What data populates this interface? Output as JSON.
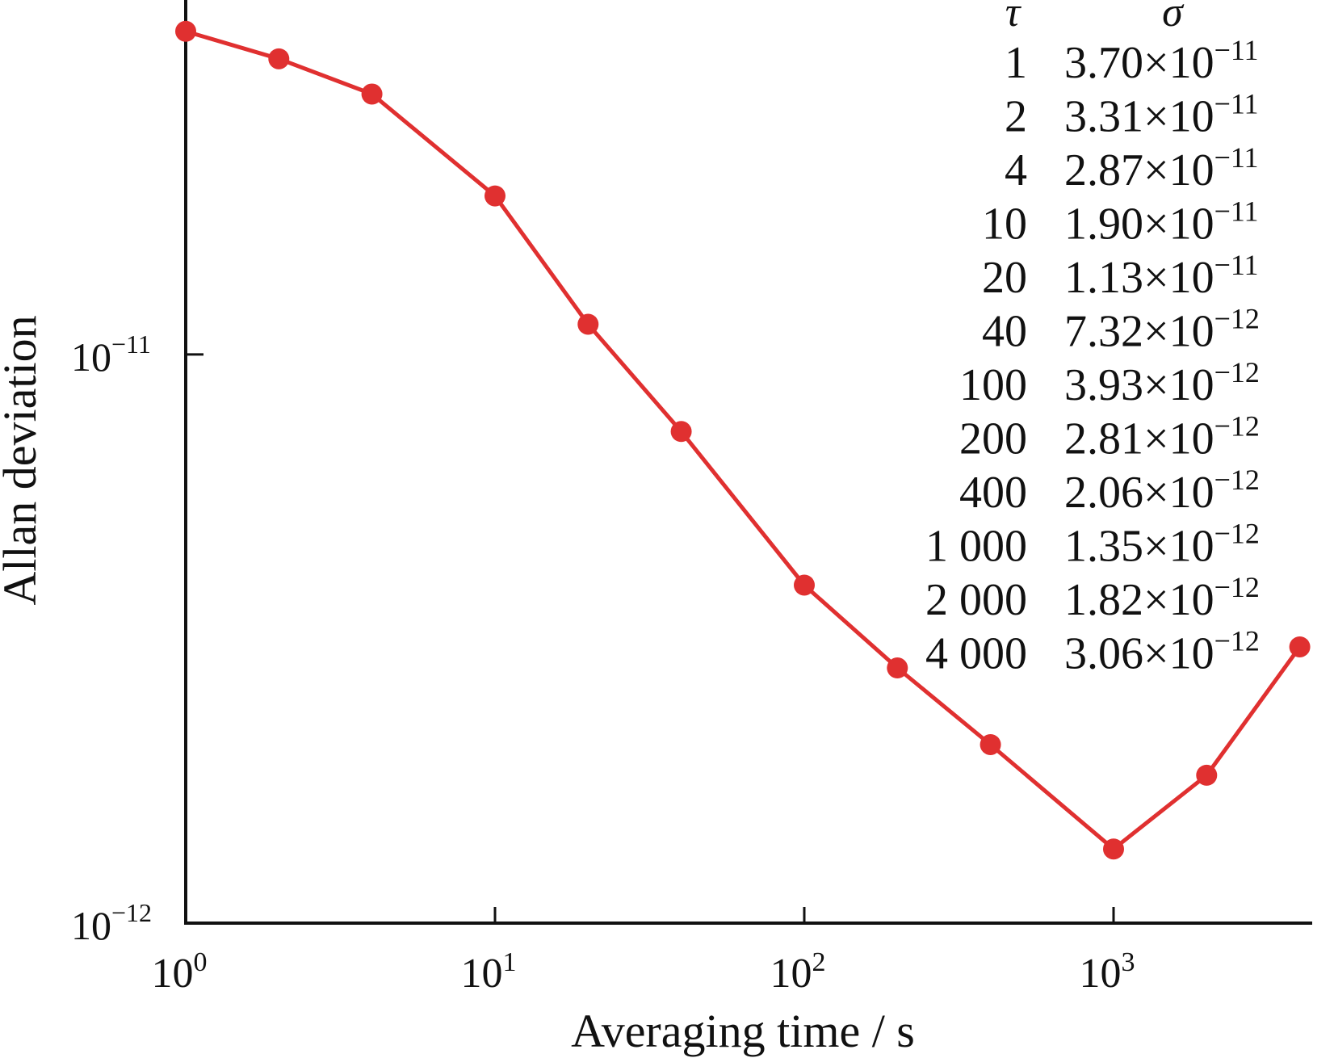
{
  "chart_data": {
    "type": "line",
    "title": "",
    "xlabel": "Averaging time / s",
    "ylabel": "Allan deviation",
    "x_scale": "log",
    "y_scale": "log",
    "xlim": [
      1,
      4500
    ],
    "ylim": [
      1e-12,
      4.2e-11
    ],
    "grid": false,
    "x_ticks": [
      {
        "value": 1,
        "base": "10",
        "exp": "0"
      },
      {
        "value": 10,
        "base": "10",
        "exp": "1"
      },
      {
        "value": 100,
        "base": "10",
        "exp": "2"
      },
      {
        "value": 1000,
        "base": "10",
        "exp": "3"
      }
    ],
    "y_ticks": [
      {
        "value": 1e-11,
        "base": "10",
        "exp": "−11"
      },
      {
        "value": 1e-12,
        "base": "10",
        "exp": "−12"
      }
    ],
    "series": [
      {
        "color": "#e03030",
        "x": [
          1,
          2,
          4,
          10,
          20,
          40,
          100,
          200,
          400,
          1000,
          2000,
          4000
        ],
        "y": [
          3.7e-11,
          3.31e-11,
          2.87e-11,
          1.9e-11,
          1.13e-11,
          7.32e-12,
          3.93e-12,
          2.81e-12,
          2.06e-12,
          1.35e-12,
          1.82e-12,
          3.06e-12
        ]
      }
    ],
    "annotation_table": {
      "headers": [
        "τ",
        "σ"
      ],
      "rows": [
        {
          "tau": "1",
          "mant": "3.70",
          "exp": "−11"
        },
        {
          "tau": "2",
          "mant": "3.31",
          "exp": "−11"
        },
        {
          "tau": "4",
          "mant": "2.87",
          "exp": "−11"
        },
        {
          "tau": "10",
          "mant": "1.90",
          "exp": "−11"
        },
        {
          "tau": "20",
          "mant": "1.13",
          "exp": "−11"
        },
        {
          "tau": "40",
          "mant": "7.32",
          "exp": "−12"
        },
        {
          "tau": "100",
          "mant": "3.93",
          "exp": "−12"
        },
        {
          "tau": "200",
          "mant": "2.81",
          "exp": "−12"
        },
        {
          "tau": "400",
          "mant": "2.06",
          "exp": "−12"
        },
        {
          "tau": "1 000",
          "mant": "1.35",
          "exp": "−12"
        },
        {
          "tau": "2 000",
          "mant": "1.82",
          "exp": "−12"
        },
        {
          "tau": "4 000",
          "mant": "3.06",
          "exp": "−12"
        }
      ],
      "times_sign": "×10"
    }
  }
}
